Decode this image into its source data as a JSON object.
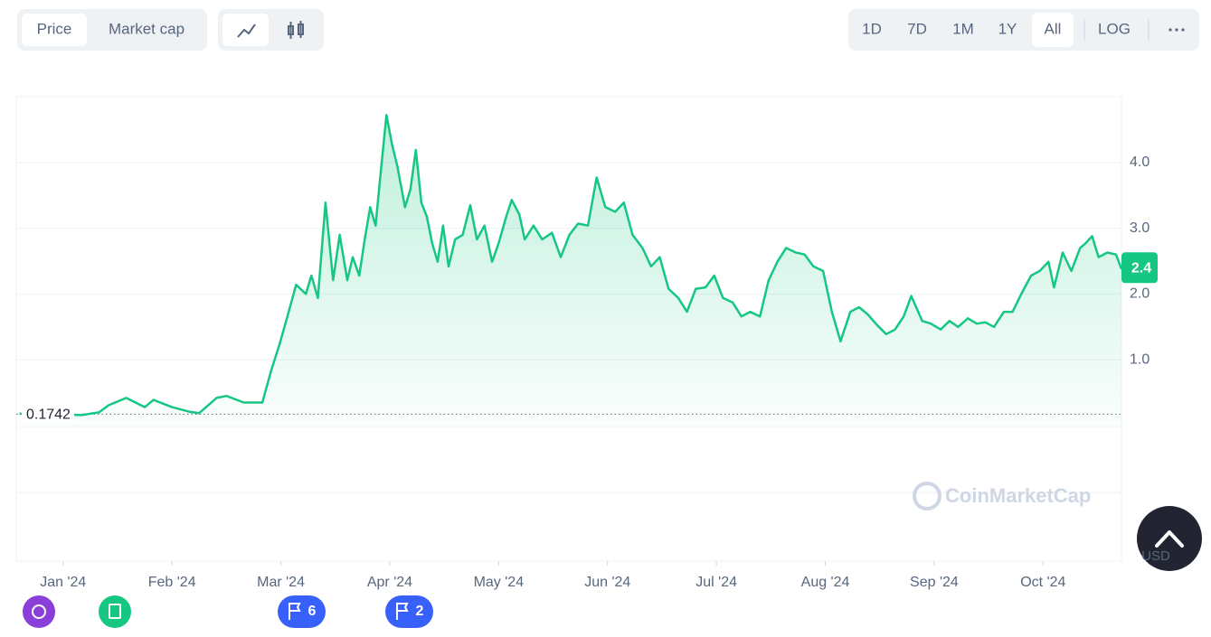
{
  "controls": {
    "views": [
      "Price",
      "Market cap"
    ],
    "ranges": [
      "1D",
      "7D",
      "1M",
      "1Y",
      "All",
      "LOG"
    ]
  },
  "chart_data": {
    "type": "line",
    "x": [
      -0.4,
      -0.08,
      0.17,
      0.33,
      0.42,
      0.58,
      0.75,
      0.83,
      1.0,
      1.16,
      1.25,
      1.41,
      1.5,
      1.66,
      1.83,
      1.91,
      1.99,
      2.06,
      2.14,
      2.23,
      2.28,
      2.34,
      2.41,
      2.48,
      2.54,
      2.61,
      2.66,
      2.72,
      2.77,
      2.82,
      2.87,
      2.91,
      2.97,
      3.02,
      3.07,
      3.14,
      3.19,
      3.24,
      3.29,
      3.34,
      3.39,
      3.44,
      3.49,
      3.54,
      3.6,
      3.67,
      3.74,
      3.8,
      3.87,
      3.94,
      4.0,
      4.07,
      4.12,
      4.19,
      4.24,
      4.32,
      4.4,
      4.49,
      4.57,
      4.65,
      4.73,
      4.82,
      4.9,
      4.98,
      5.07,
      5.15,
      5.23,
      5.32,
      5.4,
      5.48,
      5.56,
      5.65,
      5.73,
      5.81,
      5.9,
      5.98,
      6.06,
      6.15,
      6.23,
      6.31,
      6.4,
      6.48,
      6.56,
      6.64,
      6.73,
      6.81,
      6.89,
      6.98,
      7.06,
      7.14,
      7.23,
      7.31,
      7.39,
      7.48,
      7.56,
      7.64,
      7.72,
      7.79,
      7.89,
      7.97,
      8.06,
      8.14,
      8.22,
      8.31,
      8.39,
      8.47,
      8.55,
      8.64,
      8.72,
      8.8,
      8.89,
      8.97,
      9.05,
      9.1,
      9.18,
      9.26,
      9.34,
      9.39,
      9.45,
      9.51,
      9.59,
      9.67,
      9.72
    ],
    "series": [
      {
        "name": "Price",
        "color": "#16c784",
        "values": [
          0.18,
          0.17,
          0.16,
          0.2,
          0.31,
          0.42,
          0.28,
          0.39,
          0.28,
          0.21,
          0.19,
          0.42,
          0.45,
          0.35,
          0.35,
          0.83,
          1.25,
          1.66,
          2.14,
          2.0,
          2.28,
          1.94,
          3.39,
          2.21,
          2.9,
          2.21,
          2.56,
          2.28,
          2.83,
          3.32,
          3.04,
          3.73,
          4.72,
          4.28,
          3.94,
          3.32,
          3.59,
          4.19,
          3.39,
          3.18,
          2.77,
          2.49,
          3.04,
          2.42,
          2.83,
          2.9,
          3.35,
          2.83,
          3.04,
          2.49,
          2.77,
          3.18,
          3.43,
          3.21,
          2.83,
          3.04,
          2.83,
          2.93,
          2.56,
          2.9,
          3.07,
          3.04,
          3.77,
          3.32,
          3.25,
          3.39,
          2.9,
          2.7,
          2.42,
          2.56,
          2.08,
          1.94,
          1.73,
          2.08,
          2.1,
          2.28,
          1.94,
          1.87,
          1.66,
          1.73,
          1.66,
          2.21,
          2.49,
          2.7,
          2.63,
          2.6,
          2.42,
          2.35,
          1.73,
          1.28,
          1.73,
          1.8,
          1.69,
          1.52,
          1.39,
          1.46,
          1.66,
          1.97,
          1.59,
          1.55,
          1.46,
          1.59,
          1.5,
          1.63,
          1.55,
          1.57,
          1.5,
          1.73,
          1.73,
          2.0,
          2.28,
          2.35,
          2.49,
          2.1,
          2.63,
          2.35,
          2.7,
          2.77,
          2.88,
          2.56,
          2.63,
          2.6,
          2.38
        ]
      }
    ],
    "xlim": [
      -0.43,
      9.72
    ],
    "xticks": [
      {
        "value": 0,
        "label": "Jan '24"
      },
      {
        "value": 1,
        "label": "Feb '24"
      },
      {
        "value": 2,
        "label": "Mar '24"
      },
      {
        "value": 3,
        "label": "Apr '24"
      },
      {
        "value": 4,
        "label": "May '24"
      },
      {
        "value": 5,
        "label": "Jun '24"
      },
      {
        "value": 6,
        "label": "Jul '24"
      },
      {
        "value": 7,
        "label": "Aug '24"
      },
      {
        "value": 8,
        "label": "Sep '24"
      },
      {
        "value": 9,
        "label": "Oct '24"
      }
    ],
    "ylim": [
      0,
      5
    ],
    "yticks": [
      {
        "value": 1,
        "label": "1.0"
      },
      {
        "value": 2,
        "label": "2.0"
      },
      {
        "value": 3,
        "label": "3.0"
      },
      {
        "value": 4,
        "label": "4.0"
      }
    ],
    "grid": true,
    "start_price": 0.1742,
    "last_price": 2.4,
    "currency": "USD",
    "watermark": "CoinMarketCap",
    "event_counts": [
      6,
      2
    ]
  }
}
